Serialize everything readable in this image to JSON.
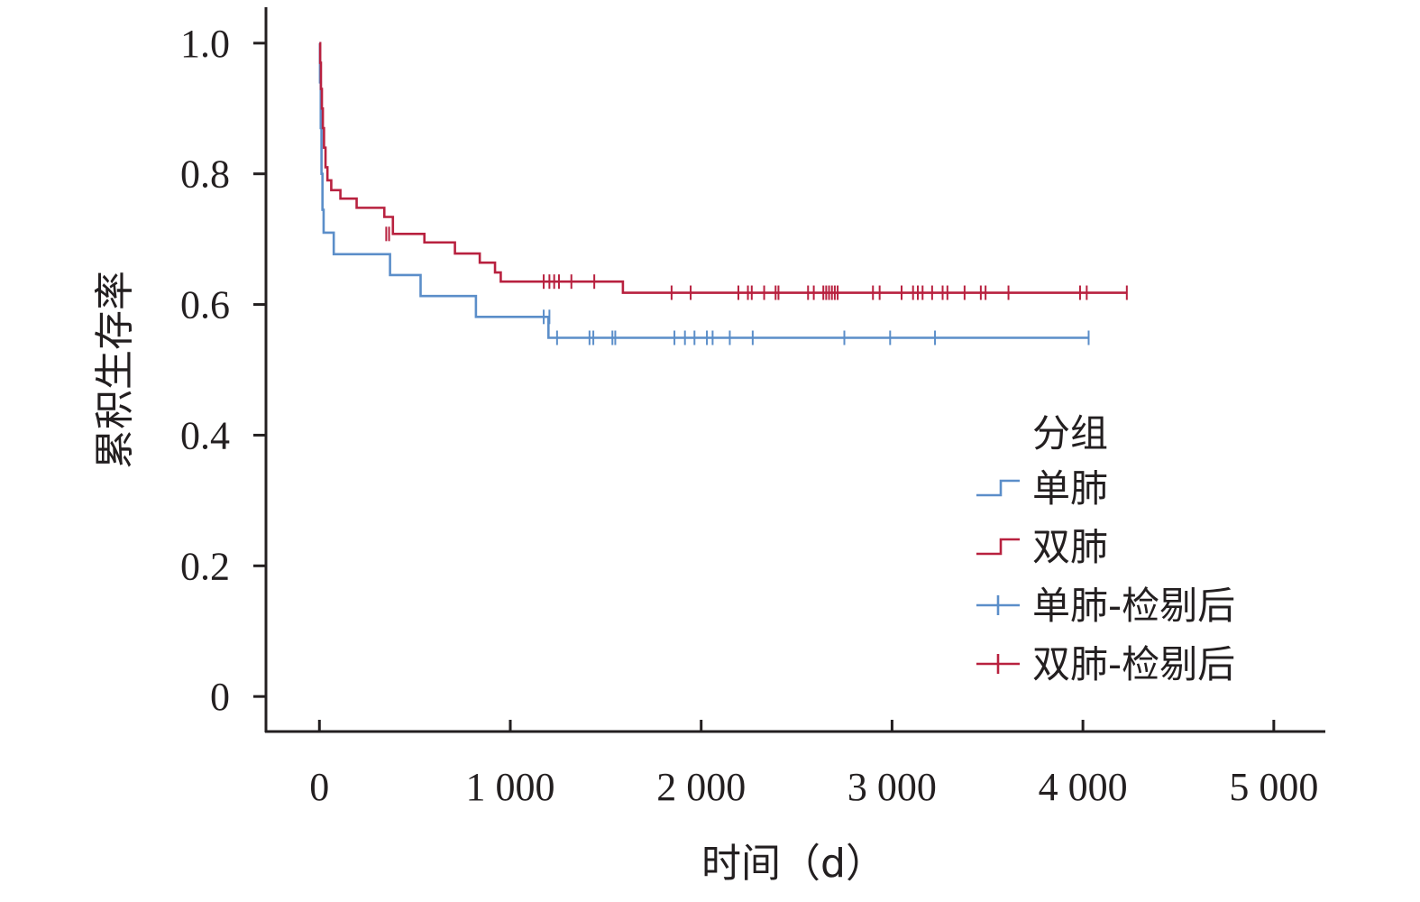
{
  "chart_data": {
    "type": "line",
    "subtype": "kaplan-meier",
    "xlabel": "时间（d）",
    "ylabel": "累积生存率",
    "xlim": [
      -280,
      5270
    ],
    "ylim": [
      -0.055,
      1.055
    ],
    "x_ticks": [
      0,
      1000,
      2000,
      3000,
      4000,
      5000
    ],
    "x_tick_labels": [
      "0",
      "1 000",
      "2 000",
      "3 000",
      "4 000",
      "5 000"
    ],
    "y_ticks": [
      0,
      0.2,
      0.4,
      0.6,
      0.8,
      1.0
    ],
    "y_tick_labels": [
      "0",
      "0.2",
      "0.4",
      "0.6",
      "0.8",
      "1.0"
    ],
    "legend": {
      "title": "分组",
      "position": "lower-right",
      "entries": [
        {
          "label": "单肺",
          "kind": "step",
          "color": "#5b8ec9"
        },
        {
          "label": "双肺",
          "kind": "step",
          "color": "#b8213f"
        },
        {
          "label": "单肺-检剔后",
          "kind": "censor",
          "color": "#5b8ec9"
        },
        {
          "label": "双肺-检剔后",
          "kind": "censor",
          "color": "#b8213f"
        }
      ]
    },
    "series": [
      {
        "name": "单肺",
        "color": "#5b8ec9",
        "steps": [
          [
            0,
            1.0
          ],
          [
            3,
            0.94
          ],
          [
            7,
            0.87
          ],
          [
            11,
            0.8
          ],
          [
            16,
            0.745
          ],
          [
            22,
            0.71
          ],
          [
            75,
            0.677
          ],
          [
            370,
            0.645
          ],
          [
            530,
            0.613
          ],
          [
            820,
            0.581
          ],
          [
            1200,
            0.549
          ],
          [
            4030,
            0.549
          ]
        ],
        "censored": [
          [
            1175,
            0.581
          ],
          [
            1205,
            0.581
          ],
          [
            1245,
            0.549
          ],
          [
            1415,
            0.549
          ],
          [
            1435,
            0.549
          ],
          [
            1535,
            0.549
          ],
          [
            1550,
            0.549
          ],
          [
            1860,
            0.549
          ],
          [
            1915,
            0.549
          ],
          [
            1965,
            0.549
          ],
          [
            2030,
            0.549
          ],
          [
            2060,
            0.549
          ],
          [
            2150,
            0.549
          ],
          [
            2270,
            0.549
          ],
          [
            2750,
            0.549
          ],
          [
            2990,
            0.549
          ],
          [
            3225,
            0.549
          ],
          [
            4030,
            0.549
          ]
        ]
      },
      {
        "name": "双肺",
        "color": "#b8213f",
        "steps": [
          [
            0,
            1.0
          ],
          [
            4,
            0.97
          ],
          [
            8,
            0.93
          ],
          [
            13,
            0.9
          ],
          [
            18,
            0.87
          ],
          [
            24,
            0.84
          ],
          [
            32,
            0.81
          ],
          [
            42,
            0.79
          ],
          [
            62,
            0.775
          ],
          [
            110,
            0.762
          ],
          [
            195,
            0.748
          ],
          [
            340,
            0.734
          ],
          [
            385,
            0.708
          ],
          [
            550,
            0.695
          ],
          [
            710,
            0.678
          ],
          [
            840,
            0.664
          ],
          [
            920,
            0.649
          ],
          [
            950,
            0.635
          ],
          [
            1590,
            0.618
          ],
          [
            4230,
            0.618
          ]
        ],
        "censored": [
          [
            350,
            0.708
          ],
          [
            365,
            0.708
          ],
          [
            1175,
            0.635
          ],
          [
            1205,
            0.635
          ],
          [
            1230,
            0.635
          ],
          [
            1255,
            0.635
          ],
          [
            1320,
            0.635
          ],
          [
            1440,
            0.635
          ],
          [
            1845,
            0.618
          ],
          [
            1945,
            0.618
          ],
          [
            2195,
            0.618
          ],
          [
            2245,
            0.618
          ],
          [
            2265,
            0.618
          ],
          [
            2330,
            0.618
          ],
          [
            2390,
            0.618
          ],
          [
            2405,
            0.618
          ],
          [
            2560,
            0.618
          ],
          [
            2590,
            0.618
          ],
          [
            2640,
            0.618
          ],
          [
            2655,
            0.618
          ],
          [
            2670,
            0.618
          ],
          [
            2685,
            0.618
          ],
          [
            2700,
            0.618
          ],
          [
            2715,
            0.618
          ],
          [
            2900,
            0.618
          ],
          [
            2935,
            0.618
          ],
          [
            3050,
            0.618
          ],
          [
            3110,
            0.618
          ],
          [
            3135,
            0.618
          ],
          [
            3160,
            0.618
          ],
          [
            3210,
            0.618
          ],
          [
            3265,
            0.618
          ],
          [
            3290,
            0.618
          ],
          [
            3380,
            0.618
          ],
          [
            3465,
            0.618
          ],
          [
            3490,
            0.618
          ],
          [
            3610,
            0.618
          ],
          [
            3985,
            0.618
          ],
          [
            4020,
            0.618
          ],
          [
            4230,
            0.618
          ]
        ]
      }
    ]
  }
}
